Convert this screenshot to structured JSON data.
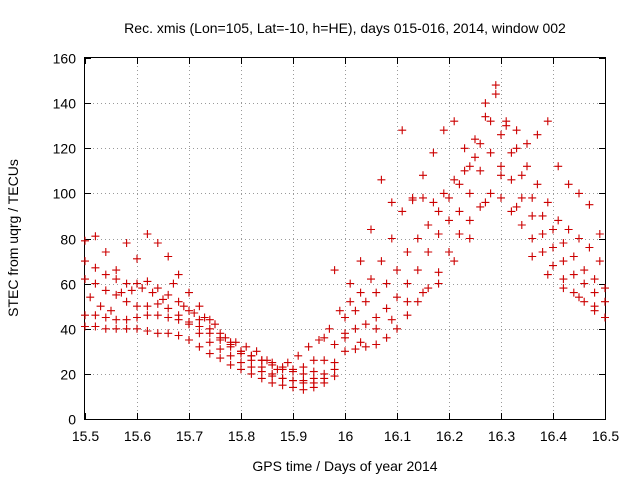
{
  "chart_data": {
    "type": "scatter",
    "title": "Rec. xmis (Lon=105, Lat=-10, h=HE), days 015-016, 2014, window 002",
    "xlabel": "GPS time / Days of year 2014",
    "ylabel": "STEC from uqrg / TECUs",
    "xlim": [
      15.5,
      16.5
    ],
    "ylim": [
      0,
      160
    ],
    "xticks": [
      "15.5",
      "15.6",
      "15.7",
      "15.8",
      "15.9",
      "16",
      "16.1",
      "16.2",
      "16.3",
      "16.4",
      "16.5"
    ],
    "yticks": [
      "0",
      "20",
      "40",
      "60",
      "80",
      "100",
      "120",
      "140",
      "160"
    ],
    "grid": true,
    "marker": "plus",
    "color": "#cc0000",
    "series": [
      {
        "points": [
          [
            15.5,
            46
          ],
          [
            15.52,
            46
          ],
          [
            15.54,
            45
          ],
          [
            15.56,
            44
          ],
          [
            15.58,
            44
          ],
          [
            15.6,
            45
          ],
          [
            15.62,
            46
          ],
          [
            15.64,
            46
          ],
          [
            15.66,
            45
          ],
          [
            15.68,
            44
          ],
          [
            15.7,
            43
          ],
          [
            15.72,
            41
          ],
          [
            15.74,
            38
          ],
          [
            15.76,
            35
          ],
          [
            15.78,
            32
          ],
          [
            15.8,
            29
          ],
          [
            15.82,
            26
          ],
          [
            15.84,
            23
          ],
          [
            15.86,
            20
          ],
          [
            15.88,
            18
          ],
          [
            15.9,
            17
          ],
          [
            15.92,
            16
          ],
          [
            15.94,
            16
          ],
          [
            15.96,
            18
          ],
          [
            15.98,
            22
          ]
        ]
      },
      {
        "points": [
          [
            15.5,
            41
          ],
          [
            15.52,
            41
          ],
          [
            15.54,
            40
          ],
          [
            15.56,
            40
          ],
          [
            15.58,
            40
          ],
          [
            15.6,
            40
          ],
          [
            15.62,
            39
          ],
          [
            15.64,
            38
          ],
          [
            15.66,
            38
          ],
          [
            15.68,
            37
          ],
          [
            15.7,
            35
          ],
          [
            15.72,
            32
          ],
          [
            15.74,
            29
          ],
          [
            15.76,
            27
          ],
          [
            15.78,
            24
          ],
          [
            15.8,
            22
          ],
          [
            15.82,
            20
          ],
          [
            15.84,
            18
          ],
          [
            15.86,
            16
          ],
          [
            15.88,
            15
          ],
          [
            15.9,
            14
          ],
          [
            15.92,
            13
          ],
          [
            15.94,
            14
          ],
          [
            15.96,
            16
          ],
          [
            15.98,
            19
          ]
        ]
      },
      {
        "points": [
          [
            15.5,
            62
          ],
          [
            15.52,
            60
          ],
          [
            15.54,
            57
          ],
          [
            15.56,
            55
          ],
          [
            15.58,
            52
          ],
          [
            15.6,
            50
          ],
          [
            15.62,
            50
          ],
          [
            15.64,
            51
          ],
          [
            15.66,
            49
          ],
          [
            15.68,
            46
          ],
          [
            15.7,
            42
          ],
          [
            15.72,
            38
          ],
          [
            15.74,
            34
          ],
          [
            15.76,
            31
          ],
          [
            15.78,
            28
          ],
          [
            15.8,
            25
          ],
          [
            15.82,
            23
          ],
          [
            15.84,
            21
          ],
          [
            15.86,
            19
          ],
          [
            15.88,
            18
          ],
          [
            15.9,
            17
          ],
          [
            15.92,
            17
          ],
          [
            15.94,
            18
          ],
          [
            15.96,
            20
          ],
          [
            15.98,
            25
          ]
        ]
      },
      {
        "points": [
          [
            15.5,
            70
          ],
          [
            15.52,
            67
          ],
          [
            15.54,
            64
          ],
          [
            15.56,
            62
          ],
          [
            15.58,
            60
          ],
          [
            15.6,
            60
          ],
          [
            15.62,
            61
          ],
          [
            15.64,
            58
          ],
          [
            15.66,
            55
          ],
          [
            15.68,
            52
          ],
          [
            15.7,
            48
          ],
          [
            15.72,
            44
          ],
          [
            15.74,
            40
          ],
          [
            15.76,
            36
          ],
          [
            15.78,
            33
          ],
          [
            15.8,
            30
          ],
          [
            15.82,
            28
          ],
          [
            15.84,
            26
          ],
          [
            15.86,
            24
          ],
          [
            15.88,
            22
          ],
          [
            15.9,
            21
          ],
          [
            15.92,
            20
          ],
          [
            15.94,
            21
          ],
          [
            15.96,
            26
          ],
          [
            15.98,
            33
          ]
        ]
      },
      {
        "points": [
          [
            15.5,
            79
          ],
          [
            15.52,
            81
          ],
          [
            15.54,
            74
          ],
          [
            15.56,
            66
          ],
          [
            15.58,
            78
          ],
          [
            15.6,
            71
          ],
          [
            15.62,
            82
          ],
          [
            15.64,
            78
          ],
          [
            15.66,
            72
          ],
          [
            15.68,
            64
          ],
          [
            15.7,
            56
          ],
          [
            15.72,
            50
          ],
          [
            15.74,
            44
          ],
          [
            15.76,
            38
          ],
          [
            15.78,
            34
          ],
          [
            15.8,
            30
          ],
          [
            15.82,
            28
          ],
          [
            15.84,
            26
          ],
          [
            15.86,
            25
          ],
          [
            15.88,
            23
          ],
          [
            15.9,
            22
          ],
          [
            15.92,
            23
          ],
          [
            15.94,
            26
          ],
          [
            15.96,
            36
          ],
          [
            15.98,
            66
          ]
        ]
      },
      {
        "points": [
          [
            15.51,
            54
          ],
          [
            15.53,
            50
          ],
          [
            15.55,
            48
          ],
          [
            15.57,
            56
          ],
          [
            15.59,
            57
          ],
          [
            15.61,
            58
          ],
          [
            15.63,
            56
          ],
          [
            15.65,
            53
          ],
          [
            15.67,
            60
          ],
          [
            15.69,
            50
          ],
          [
            15.71,
            47
          ],
          [
            15.73,
            45
          ],
          [
            15.75,
            42
          ],
          [
            15.77,
            36
          ],
          [
            15.79,
            34
          ],
          [
            15.81,
            32
          ],
          [
            15.83,
            30
          ],
          [
            15.85,
            26
          ],
          [
            15.87,
            22
          ],
          [
            15.89,
            25
          ],
          [
            15.91,
            28
          ],
          [
            15.93,
            32
          ],
          [
            15.95,
            35
          ],
          [
            15.97,
            40
          ],
          [
            15.99,
            48
          ]
        ]
      },
      {
        "points": [
          [
            16.0,
            30
          ],
          [
            16.02,
            31
          ],
          [
            16.04,
            32
          ],
          [
            16.06,
            33
          ],
          [
            16.08,
            36
          ],
          [
            16.1,
            40
          ],
          [
            16.12,
            46
          ],
          [
            16.14,
            52
          ],
          [
            16.16,
            58
          ],
          [
            16.18,
            65
          ],
          [
            16.2,
            74
          ],
          [
            16.22,
            82
          ],
          [
            16.24,
            88
          ],
          [
            16.26,
            94
          ],
          [
            16.28,
            100
          ],
          [
            16.3,
            98
          ],
          [
            16.32,
            92
          ],
          [
            16.34,
            86
          ],
          [
            16.36,
            80
          ],
          [
            16.38,
            74
          ],
          [
            16.4,
            68
          ],
          [
            16.42,
            62
          ],
          [
            16.44,
            56
          ],
          [
            16.46,
            52
          ],
          [
            16.48,
            48
          ],
          [
            16.5,
            45
          ]
        ]
      },
      {
        "points": [
          [
            16.0,
            38
          ],
          [
            16.02,
            40
          ],
          [
            16.04,
            42
          ],
          [
            16.06,
            45
          ],
          [
            16.08,
            49
          ],
          [
            16.1,
            54
          ],
          [
            16.12,
            60
          ],
          [
            16.14,
            66
          ],
          [
            16.16,
            74
          ],
          [
            16.18,
            82
          ],
          [
            16.2,
            88
          ],
          [
            16.22,
            92
          ],
          [
            16.24,
            100
          ],
          [
            16.26,
            110
          ],
          [
            16.28,
            118
          ],
          [
            16.3,
            112
          ],
          [
            16.32,
            106
          ],
          [
            16.34,
            98
          ],
          [
            16.36,
            90
          ],
          [
            16.38,
            82
          ],
          [
            16.4,
            76
          ],
          [
            16.42,
            70
          ],
          [
            16.44,
            64
          ],
          [
            16.46,
            60
          ],
          [
            16.48,
            56
          ],
          [
            16.5,
            52
          ]
        ]
      },
      {
        "points": [
          [
            16.0,
            45
          ],
          [
            16.02,
            48
          ],
          [
            16.04,
            52
          ],
          [
            16.06,
            56
          ],
          [
            16.08,
            60
          ],
          [
            16.1,
            66
          ],
          [
            16.12,
            74
          ],
          [
            16.14,
            80
          ],
          [
            16.16,
            86
          ],
          [
            16.18,
            92
          ],
          [
            16.2,
            98
          ],
          [
            16.22,
            104
          ],
          [
            16.24,
            112
          ],
          [
            16.26,
            122
          ],
          [
            16.28,
            132
          ],
          [
            16.3,
            126
          ],
          [
            16.32,
            118
          ],
          [
            16.34,
            108
          ],
          [
            16.36,
            98
          ],
          [
            16.38,
            90
          ],
          [
            16.4,
            84
          ],
          [
            16.42,
            78
          ],
          [
            16.44,
            72
          ],
          [
            16.46,
            66
          ],
          [
            16.48,
            62
          ],
          [
            16.5,
            58
          ]
        ]
      },
      {
        "points": [
          [
            16.01,
            52
          ],
          [
            16.03,
            56
          ],
          [
            16.05,
            62
          ],
          [
            16.07,
            70
          ],
          [
            16.09,
            80
          ],
          [
            16.11,
            92
          ],
          [
            16.13,
            97
          ],
          [
            16.15,
            98
          ],
          [
            16.17,
            96
          ],
          [
            16.19,
            100
          ],
          [
            16.21,
            106
          ],
          [
            16.23,
            110
          ],
          [
            16.25,
            116
          ],
          [
            16.27,
            140
          ],
          [
            16.29,
            148
          ],
          [
            16.31,
            130
          ],
          [
            16.33,
            120
          ],
          [
            16.35,
            112
          ],
          [
            16.37,
            104
          ],
          [
            16.39,
            96
          ],
          [
            16.41,
            88
          ],
          [
            16.43,
            84
          ],
          [
            16.45,
            80
          ],
          [
            16.47,
            76
          ],
          [
            16.49,
            70
          ]
        ]
      },
      {
        "points": [
          [
            16.01,
            60
          ],
          [
            16.03,
            70
          ],
          [
            16.05,
            84
          ],
          [
            16.07,
            106
          ],
          [
            16.09,
            96
          ],
          [
            16.11,
            128
          ],
          [
            16.13,
            98
          ],
          [
            16.15,
            108
          ],
          [
            16.17,
            118
          ],
          [
            16.19,
            128
          ],
          [
            16.21,
            132
          ],
          [
            16.23,
            120
          ],
          [
            16.25,
            124
          ],
          [
            16.27,
            134
          ],
          [
            16.29,
            144
          ],
          [
            16.31,
            132
          ],
          [
            16.33,
            128
          ],
          [
            16.35,
            122
          ],
          [
            16.37,
            126
          ],
          [
            16.39,
            132
          ],
          [
            16.41,
            112
          ],
          [
            16.43,
            104
          ],
          [
            16.45,
            100
          ],
          [
            16.47,
            95
          ],
          [
            16.49,
            82
          ]
        ]
      },
      {
        "points": [
          [
            16.0,
            36
          ],
          [
            16.03,
            34
          ],
          [
            16.06,
            40
          ],
          [
            16.09,
            44
          ],
          [
            16.12,
            52
          ],
          [
            16.15,
            56
          ],
          [
            16.18,
            60
          ],
          [
            16.21,
            70
          ],
          [
            16.24,
            80
          ],
          [
            16.27,
            96
          ],
          [
            16.3,
            108
          ],
          [
            16.33,
            94
          ],
          [
            16.36,
            72
          ],
          [
            16.39,
            64
          ],
          [
            16.42,
            58
          ],
          [
            16.45,
            54
          ],
          [
            16.48,
            50
          ]
        ]
      }
    ]
  }
}
